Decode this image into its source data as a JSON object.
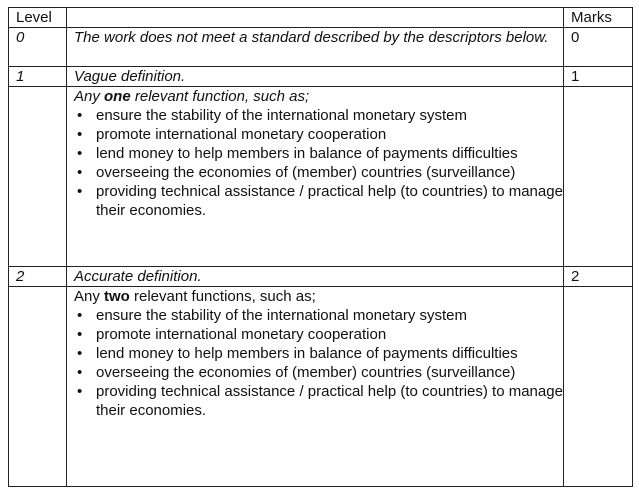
{
  "table": {
    "headers": {
      "level": "Level",
      "descriptor": "",
      "marks": "Marks"
    },
    "rows": [
      {
        "level": "0",
        "descriptor": "The work does not meet a standard described by the descriptors below.",
        "marks": "0"
      },
      {
        "level": "1",
        "descriptor": "Vague definition.",
        "marks": "1",
        "detail": {
          "intro_prefix": "Any ",
          "intro_bold": "one",
          "intro_suffix": " relevant function, such as;",
          "items": [
            "ensure the stability of the international monetary system",
            "promote international monetary cooperation",
            "lend money to help members in balance of payments difficulties",
            "overseeing the economies of (member) countries (surveillance)",
            "providing technical assistance / practical help (to countries) to manage their economies."
          ]
        }
      },
      {
        "level": "2",
        "descriptor": "Accurate definition.",
        "marks": "2",
        "detail": {
          "intro_prefix": "Any ",
          "intro_bold": "two",
          "intro_suffix": " relevant functions, such as;",
          "items": [
            "ensure the stability of the international monetary system",
            "promote international monetary cooperation",
            "lend money to help members in balance of payments difficulties",
            "overseeing the economies of (member) countries (surveillance)",
            "providing technical assistance / practical help (to countries) to manage their economies."
          ]
        }
      }
    ],
    "bullet_glyph": "•"
  }
}
